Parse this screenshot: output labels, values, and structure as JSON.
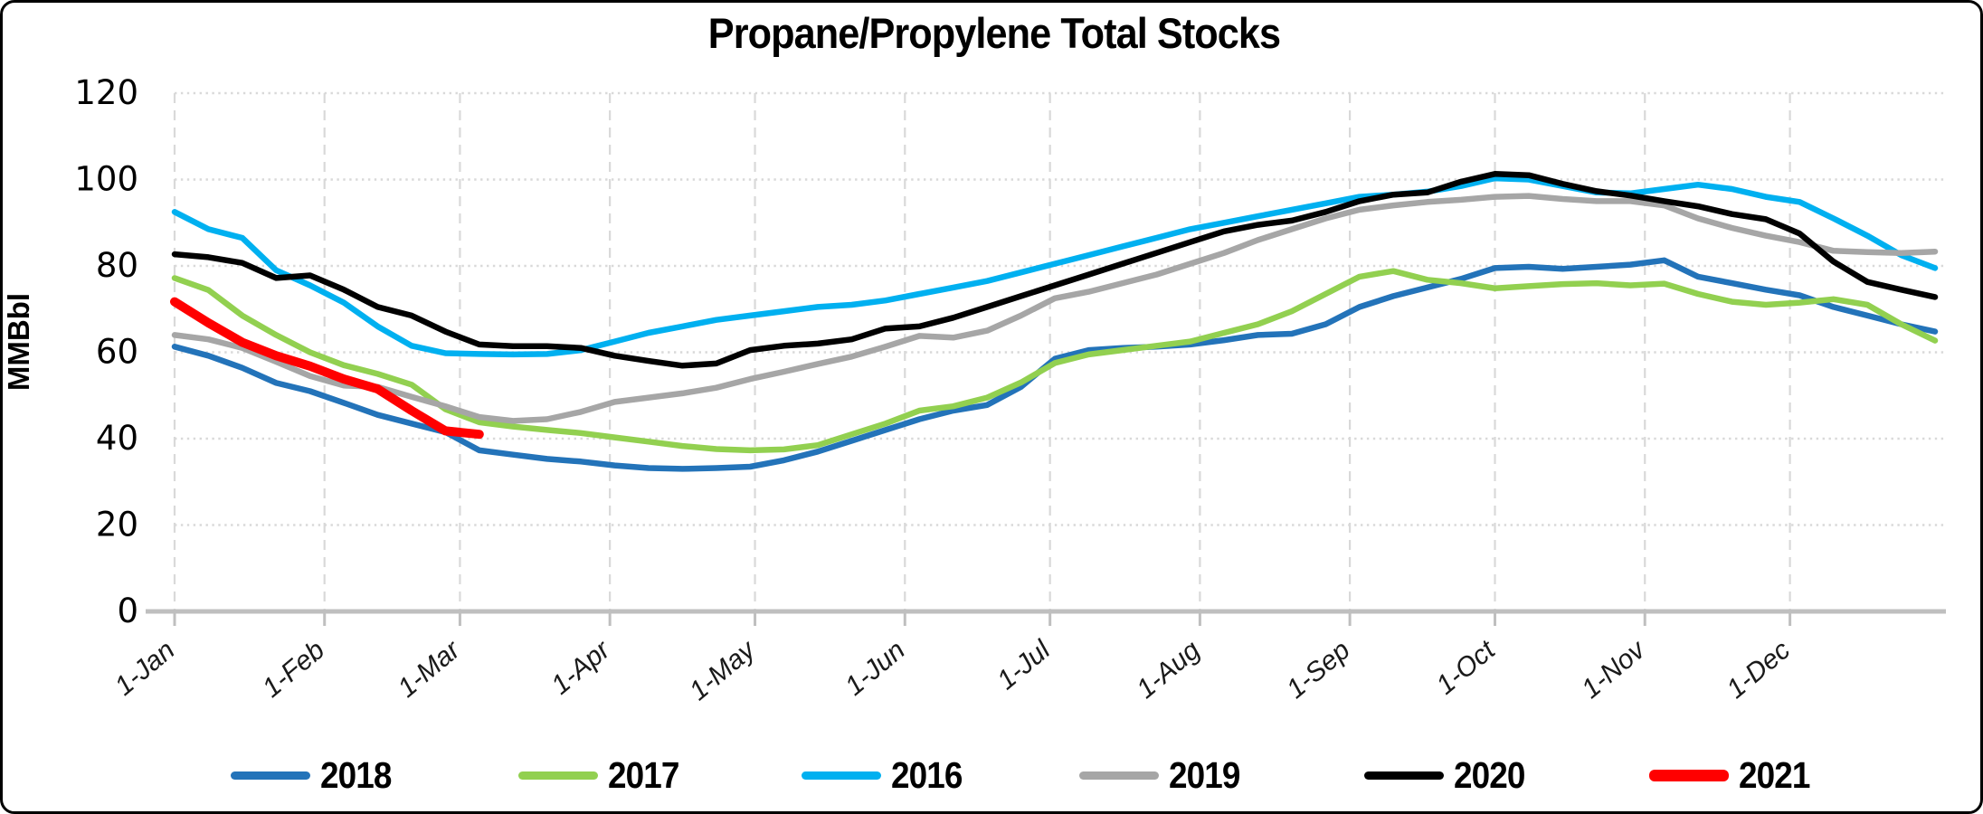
{
  "title": "Propane/Propylene Total Stocks",
  "y_axis": {
    "title": "MMBbl",
    "ticks": [
      0,
      20,
      40,
      60,
      80,
      100,
      120
    ]
  },
  "x_axis": {
    "tick_labels": [
      "1-Jan",
      "1-Feb",
      "1-Mar",
      "1-Apr",
      "1-May",
      "1-Jun",
      "1-Jul",
      "1-Aug",
      "1-Sep",
      "1-Oct",
      "1-Nov",
      "1-Dec"
    ],
    "month_start_days": [
      1,
      32,
      60,
      91,
      121,
      152,
      182,
      213,
      244,
      274,
      305,
      335
    ]
  },
  "legend": [
    {
      "label": "2018",
      "color": "#2373B9"
    },
    {
      "label": "2017",
      "color": "#92D050"
    },
    {
      "label": "2016",
      "color": "#00B0F0"
    },
    {
      "label": "2019",
      "color": "#A6A6A6"
    },
    {
      "label": "2020",
      "color": "#000000"
    },
    {
      "label": "2021",
      "color": "#FF0000"
    }
  ],
  "chart_data": {
    "type": "line",
    "title": "Propane/Propylene Total Stocks",
    "xlabel": "",
    "ylabel": "MMBbl",
    "ylim": [
      0,
      120
    ],
    "grid": true,
    "legend_position": "bottom",
    "x_unit": "day_of_year",
    "week_days": [
      1,
      8,
      15,
      22,
      29,
      36,
      43,
      50,
      57,
      64,
      71,
      78,
      85,
      92,
      99,
      106,
      113,
      120,
      127,
      134,
      141,
      148,
      155,
      162,
      169,
      176,
      183,
      190,
      197,
      204,
      211,
      218,
      225,
      232,
      239,
      246,
      253,
      260,
      267,
      274,
      281,
      288,
      295,
      302,
      309,
      316,
      323,
      330,
      337,
      344,
      351,
      358,
      365
    ],
    "series": [
      {
        "name": "2018",
        "color": "#2373B9",
        "width": 6.5,
        "values": [
          61.3,
          59.2,
          56.4,
          52.9,
          51,
          48.3,
          45.5,
          43.5,
          41.5,
          37.3,
          36.3,
          35.3,
          34.7,
          33.8,
          33.2,
          33,
          33.2,
          33.5,
          35,
          37,
          39.5,
          42,
          44.5,
          46.5,
          47.8,
          52,
          58.5,
          60.5,
          61,
          61.3,
          61.8,
          62.8,
          64,
          64.3,
          66.5,
          70.5,
          73,
          75,
          77,
          79.5,
          79.8,
          79.3,
          79.8,
          80.3,
          81.3,
          77.5,
          76,
          74.5,
          73.2,
          70.5,
          68.5,
          66.5,
          64.8
        ]
      },
      {
        "name": "2017",
        "color": "#92D050",
        "width": 6.5,
        "values": [
          77.2,
          74.4,
          68.5,
          64,
          60,
          57,
          55,
          52.5,
          46.8,
          43.8,
          42.8,
          42,
          41.3,
          40.3,
          39.3,
          38.3,
          37.6,
          37.3,
          37.5,
          38.5,
          41,
          43.5,
          46.5,
          47.5,
          49.5,
          53,
          57.5,
          59.5,
          60.5,
          61.5,
          62.5,
          64.5,
          66.5,
          69.5,
          73.5,
          77.5,
          78.8,
          76.8,
          76,
          74.8,
          75.3,
          75.8,
          76,
          75.5,
          75.9,
          73.5,
          71.7,
          71,
          71.5,
          72.3,
          71,
          66.5,
          62.7
        ]
      },
      {
        "name": "2016",
        "color": "#00B0F0",
        "width": 6.5,
        "values": [
          92.5,
          88.5,
          86.5,
          79,
          75.5,
          71.5,
          66,
          61.5,
          59.8,
          59.6,
          59.5,
          59.6,
          60.5,
          62.5,
          64.5,
          66,
          67.5,
          68.5,
          69.5,
          70.5,
          71,
          72,
          73.5,
          75,
          76.5,
          78.5,
          80.5,
          82.5,
          84.5,
          86.5,
          88.5,
          90,
          91.5,
          93,
          94.5,
          96,
          96.5,
          97.2,
          98.5,
          100.3,
          100,
          98.5,
          97,
          96.8,
          97.8,
          98.8,
          97.8,
          96,
          94.8,
          91,
          87,
          82.5,
          79.5
        ]
      },
      {
        "name": "2019",
        "color": "#A6A6A6",
        "width": 6.5,
        "values": [
          64,
          63,
          61,
          57.8,
          54.5,
          52.3,
          52,
          49.7,
          47.5,
          45,
          44.1,
          44.5,
          46.2,
          48.5,
          49.5,
          50.5,
          51.8,
          53.8,
          55.5,
          57.3,
          59,
          61.3,
          63.8,
          63.4,
          65,
          68.5,
          72.5,
          74,
          76,
          78,
          80.5,
          83,
          86,
          88.5,
          91,
          93,
          94,
          94.8,
          95.3,
          96,
          96.2,
          95.5,
          95,
          95,
          94,
          91,
          88.8,
          87,
          85.5,
          83.5,
          83.2,
          83,
          83.3
        ]
      },
      {
        "name": "2020",
        "color": "#000000",
        "width": 6.5,
        "values": [
          82.7,
          82,
          80.7,
          77.2,
          77.8,
          74.5,
          70.5,
          68.5,
          64.8,
          61.8,
          61.4,
          61.4,
          61,
          59.2,
          58,
          56.9,
          57.4,
          60.5,
          61.5,
          62,
          63,
          65.5,
          66,
          68,
          70.5,
          73,
          75.5,
          78,
          80.5,
          83,
          85.5,
          88,
          89.5,
          90.5,
          92.5,
          95,
          96.5,
          97,
          99.5,
          101.3,
          101,
          99,
          97.3,
          96.3,
          95,
          93.8,
          92,
          90.8,
          87.5,
          81,
          76.3,
          74.5,
          72.8
        ]
      },
      {
        "name": "2021",
        "color": "#FF0000",
        "width": 10,
        "values": [
          71.7,
          66.8,
          62.3,
          59.2,
          56.8,
          53.8,
          51.5,
          46.5,
          41.8,
          41
        ]
      }
    ]
  }
}
